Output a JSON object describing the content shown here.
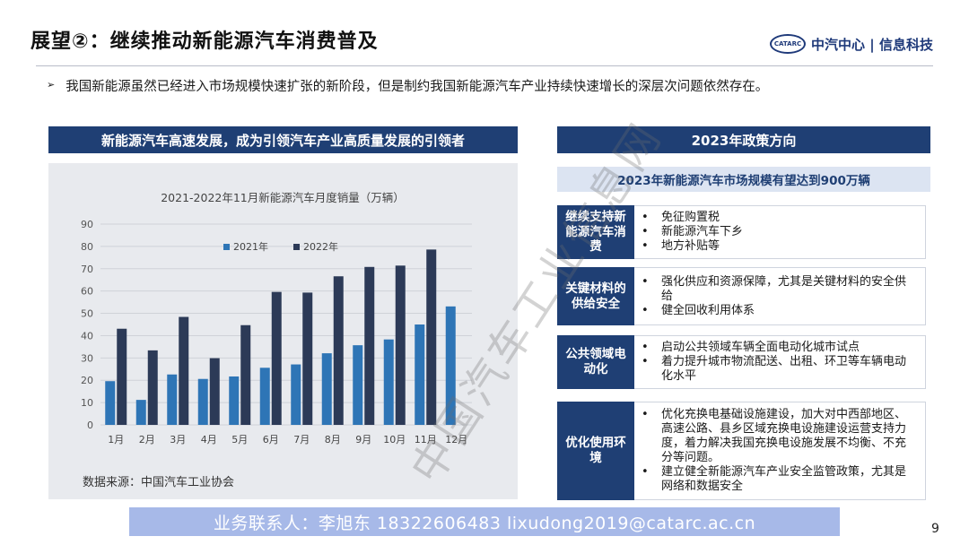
{
  "title": "展望②：继续推动新能源汽车消费普及",
  "logo": {
    "badge": "CATARC",
    "name": "中汽中心",
    "divider": "|",
    "sub": "信息科技"
  },
  "bullet": {
    "marker": "➢",
    "text": "我国新能源虽然已经进入市场规模快速扩张的新阶段，但是制约我国新能源汽车产业持续快速增长的深层次问题依然存在。"
  },
  "left_panel": {
    "header": "新能源汽车高速发展，成为引领汽车产业高质量发展的引领者",
    "source": "数据来源：中国汽车工业协会"
  },
  "chart_data": {
    "type": "bar",
    "title": "2021-2022年11月新能源汽车月度销量（万辆）",
    "categories": [
      "1月",
      "2月",
      "3月",
      "4月",
      "5月",
      "6月",
      "7月",
      "8月",
      "9月",
      "10月",
      "11月",
      "12月"
    ],
    "series": [
      {
        "name": "2021年",
        "color": "#2e75b6",
        "values": [
          19.6,
          11.2,
          22.6,
          20.6,
          21.7,
          25.6,
          27.1,
          32.1,
          35.7,
          38.3,
          45,
          53.1
        ]
      },
      {
        "name": "2022年",
        "color": "#2c3a57",
        "values": [
          43.1,
          33.4,
          48.4,
          29.9,
          44.7,
          59.6,
          59.3,
          66.6,
          70.8,
          71.4,
          78.6,
          null
        ]
      }
    ],
    "ylim": [
      0,
      90
    ],
    "yticks": [
      0,
      10,
      20,
      30,
      40,
      50,
      60,
      70,
      80,
      90
    ],
    "legend_position": "top",
    "grid": true
  },
  "right_panel": {
    "header": "2023年政策方向",
    "target": "2023年新能源汽车市场规模有望达到900万辆",
    "bullet_marker": "•",
    "policies": [
      {
        "category": "继续支持新能源汽车消费",
        "items": [
          "免征购置税",
          "新能源汽车下乡",
          "地方补贴等"
        ]
      },
      {
        "category": "关键材料的供给安全",
        "items": [
          "强化供应和资源保障，尤其是关键材料的安全供给",
          "健全回收利用体系"
        ]
      },
      {
        "category": "公共领域电动化",
        "items": [
          "启动公共领域车辆全面电动化城市试点",
          "着力提升城市物流配送、出租、环卫等车辆电动化水平"
        ]
      },
      {
        "category": "优化使用环境",
        "items": [
          "优化充换电基础设施建设，加大对中西部地区、高速公路、县乡区域充换电设施建设运营支持力度，着力解决我国充换电设施发展不均衡、不充分等问题。",
          "建立健全新能源汽车产业安全监管政策，尤其是网络和数据安全"
        ]
      }
    ]
  },
  "contact": "业务联系人：李旭东  18322606483  lixudong2019@catarc.ac.cn",
  "page_number": "9",
  "watermark": "中国汽车工业信息网"
}
